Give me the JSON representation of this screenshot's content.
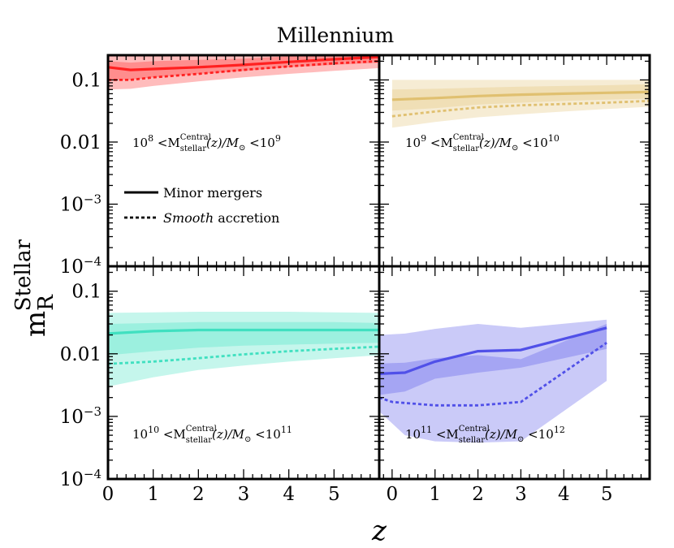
{
  "chart_data": {
    "type": "line",
    "title": "Millennium",
    "xlabel": "z",
    "ylabel": "m_R^Stellar",
    "ylabel_main": "m",
    "ylabel_sub": "R",
    "ylabel_sup": "Stellar",
    "yscale": "log",
    "ylim": [
      0.0001,
      0.25
    ],
    "xlim_left": [
      0,
      6
    ],
    "xlim_right": [
      -0.3,
      6
    ],
    "x_ticks_left": [
      0,
      1,
      2,
      3,
      4,
      5
    ],
    "x_ticks_right": [
      0,
      1,
      2,
      3,
      4,
      5
    ],
    "y_ticks": [
      {
        "value": 0.1,
        "label": "0.1"
      },
      {
        "value": 0.01,
        "label": "0.01"
      },
      {
        "value": 0.001,
        "label": "10",
        "sup": "−3"
      },
      {
        "value": 0.0001,
        "label": "10",
        "sup": "−4"
      }
    ],
    "legend": {
      "placement": "lower-left",
      "entries": [
        {
          "label": "Minor  mergers",
          "style": "solid"
        },
        {
          "label_italic": "Smooth",
          "label": " accretion",
          "style": "dotted"
        }
      ]
    },
    "panels": [
      {
        "label": {
          "lo": "10",
          "lo_exp": "8",
          "hi": "10",
          "hi_exp": "9",
          "mid": " <M",
          "sup": "Central",
          "sub": "stellar",
          "tail": "(z)/M",
          "sun": "⊙",
          "lt": " <"
        },
        "color": "#ff2020",
        "series": [
          {
            "name": "Minor mergers",
            "style": "solid",
            "x": [
              0,
              0.5,
              1,
              2,
              3,
              4,
              5,
              6
            ],
            "y": [
              0.16,
              0.145,
              0.15,
              0.16,
              0.175,
              0.195,
              0.215,
              0.235
            ]
          },
          {
            "name": "Smooth accretion",
            "style": "dotted",
            "x": [
              0,
              0.5,
              1,
              2,
              3,
              4,
              5,
              6
            ],
            "y": [
              0.1,
              0.1,
              0.11,
              0.125,
              0.145,
              0.165,
              0.185,
              0.2
            ]
          }
        ],
        "bands": [
          {
            "x": [
              0,
              0.5,
              1,
              2,
              3,
              4,
              5,
              6
            ],
            "lower": [
              0.07,
              0.072,
              0.08,
              0.095,
              0.11,
              0.125,
              0.14,
              0.155
            ],
            "upper": [
              0.25,
              0.25,
              0.25,
              0.25,
              0.25,
              0.25,
              0.25,
              0.25
            ]
          },
          {
            "x": [
              0,
              0.5,
              1,
              2,
              3,
              4,
              5,
              6
            ],
            "lower": [
              0.1,
              0.1,
              0.11,
              0.125,
              0.14,
              0.16,
              0.175,
              0.19
            ],
            "upper": [
              0.2,
              0.19,
              0.2,
              0.21,
              0.22,
              0.24,
              0.25,
              0.25
            ]
          }
        ]
      },
      {
        "label": {
          "lo": "10",
          "lo_exp": "9",
          "hi": "10",
          "hi_exp": "10",
          "mid": " <M",
          "sup": "Central",
          "sub": "stellar",
          "tail": "(z)/M",
          "sun": "⊙",
          "lt": " <"
        },
        "color": "#e0c070",
        "series": [
          {
            "name": "Minor mergers",
            "style": "solid",
            "x": [
              0,
              1,
              2,
              3,
              4,
              5,
              6
            ],
            "y": [
              0.048,
              0.051,
              0.055,
              0.058,
              0.06,
              0.062,
              0.064
            ]
          },
          {
            "name": "Smooth accretion",
            "style": "dotted",
            "x": [
              0,
              1,
              2,
              3,
              4,
              5,
              6
            ],
            "y": [
              0.026,
              0.031,
              0.036,
              0.039,
              0.041,
              0.043,
              0.046
            ]
          }
        ],
        "bands": [
          {
            "x": [
              0,
              1,
              2,
              3,
              4,
              5,
              6
            ],
            "lower": [
              0.017,
              0.021,
              0.025,
              0.028,
              0.031,
              0.034,
              0.037
            ],
            "upper": [
              0.1,
              0.1,
              0.1,
              0.1,
              0.1,
              0.1,
              0.1
            ]
          },
          {
            "x": [
              0,
              1,
              2,
              3,
              4,
              5,
              6
            ],
            "lower": [
              0.032,
              0.035,
              0.04,
              0.043,
              0.046,
              0.048,
              0.05
            ],
            "upper": [
              0.07,
              0.072,
              0.075,
              0.078,
              0.08,
              0.082,
              0.085
            ]
          }
        ]
      },
      {
        "label": {
          "lo": "10",
          "lo_exp": "10",
          "hi": "10",
          "hi_exp": "11",
          "mid": " <M",
          "sup": "Central",
          "sub": "stellar",
          "tail": "(z)/M",
          "sun": "⊙",
          "lt": " <"
        },
        "color": "#40e0c0",
        "series": [
          {
            "name": "Minor mergers",
            "style": "solid",
            "x": [
              0,
              1,
              2,
              3,
              4,
              5,
              6
            ],
            "y": [
              0.021,
              0.023,
              0.024,
              0.024,
              0.024,
              0.024,
              0.024
            ]
          },
          {
            "name": "Smooth accretion",
            "style": "dotted",
            "x": [
              0,
              1,
              2,
              3,
              4,
              5,
              6
            ],
            "y": [
              0.0069,
              0.0075,
              0.0085,
              0.0098,
              0.011,
              0.012,
              0.013
            ]
          }
        ],
        "bands": [
          {
            "x": [
              0,
              1,
              2,
              3,
              4,
              5,
              6
            ],
            "lower": [
              0.003,
              0.0042,
              0.0055,
              0.0065,
              0.0075,
              0.0085,
              0.0095
            ],
            "upper": [
              0.045,
              0.046,
              0.047,
              0.047,
              0.047,
              0.046,
              0.045
            ]
          },
          {
            "x": [
              0,
              1,
              2,
              3,
              4,
              5,
              6
            ],
            "lower": [
              0.0095,
              0.011,
              0.0125,
              0.0135,
              0.014,
              0.0145,
              0.015
            ],
            "upper": [
              0.03,
              0.031,
              0.032,
              0.032,
              0.032,
              0.032,
              0.031
            ]
          }
        ]
      },
      {
        "label": {
          "lo": "10",
          "lo_exp": "11",
          "hi": "10",
          "hi_exp": "12",
          "mid": " <M",
          "sup": "Central",
          "sub": "stellar",
          "tail": "(z)/M",
          "sun": "⊙",
          "lt": " <"
        },
        "color": "#5050e8",
        "series": [
          {
            "name": "Minor mergers",
            "style": "solid",
            "x": [
              -0.3,
              0.3,
              1,
              2,
              3,
              5
            ],
            "y": [
              0.0048,
              0.005,
              0.0075,
              0.011,
              0.0115,
              0.026
            ]
          },
          {
            "name": "Smooth accretion",
            "style": "dotted",
            "x": [
              -0.3,
              0,
              1,
              2,
              3,
              5
            ],
            "y": [
              0.002,
              0.0017,
              0.0015,
              0.0015,
              0.0017,
              0.015
            ]
          }
        ],
        "bands": [
          {
            "x": [
              -0.3,
              0.3,
              1,
              2,
              3,
              5
            ],
            "lower": [
              0.0012,
              0.0005,
              0.0004,
              0.00038,
              0.0004,
              0.0037
            ],
            "upper": [
              0.007,
              0.0072,
              0.0085,
              0.0095,
              0.0082,
              0.03
            ]
          },
          {
            "x": [
              -0.3,
              0.3,
              1,
              2,
              3,
              5
            ],
            "lower": [
              0.0022,
              0.0025,
              0.004,
              0.005,
              0.006,
              0.012
            ],
            "upper": [
              0.02,
              0.021,
              0.025,
              0.03,
              0.026,
              0.035
            ]
          }
        ]
      }
    ]
  }
}
